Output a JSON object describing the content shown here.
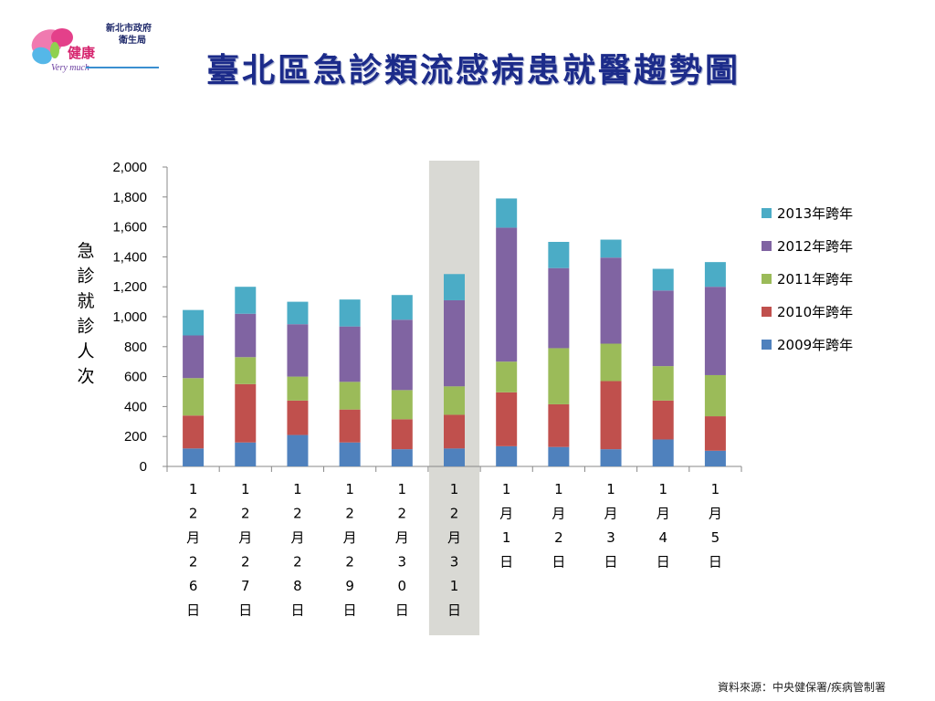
{
  "logo": {
    "brand_text": "健康",
    "org_line1": "新北市政府",
    "org_line2": "衛生局",
    "tagline": "Very much"
  },
  "title": "臺北區急診類流感病患就醫趨勢圖",
  "source": "資料來源：中央健保署/疾病管制署",
  "chart_data": {
    "type": "bar",
    "stacked": true,
    "title": "",
    "ylabel": "急診就診人次",
    "xlabel": "",
    "ylim": [
      0,
      2000
    ],
    "yticks": [
      "0",
      "200",
      "400",
      "600",
      "800",
      "1,000",
      "1,200",
      "1,400",
      "1,600",
      "1,800",
      "2,000"
    ],
    "categories": [
      "12月26日",
      "12月27日",
      "12月28日",
      "12月29日",
      "12月30日",
      "12月31日",
      "1月1日",
      "1月2日",
      "1月3日",
      "1月4日",
      "1月5日"
    ],
    "highlight_category": "12月31日",
    "legend_position": "right",
    "series": [
      {
        "name": "2009年跨年",
        "color": "#4f81bd",
        "values": [
          120,
          160,
          210,
          160,
          115,
          120,
          135,
          130,
          115,
          180,
          105
        ]
      },
      {
        "name": "2010年跨年",
        "color": "#c0504d",
        "values": [
          220,
          390,
          230,
          220,
          200,
          225,
          360,
          285,
          455,
          260,
          230
        ]
      },
      {
        "name": "2011年跨年",
        "color": "#9bbb59",
        "values": [
          250,
          180,
          160,
          185,
          195,
          190,
          205,
          375,
          250,
          230,
          275
        ]
      },
      {
        "name": "2012年跨年",
        "color": "#8064a2",
        "values": [
          285,
          290,
          350,
          370,
          470,
          575,
          895,
          535,
          575,
          505,
          590
        ]
      },
      {
        "name": "2013年跨年",
        "color": "#4bacc6",
        "values": [
          170,
          180,
          150,
          180,
          165,
          175,
          195,
          175,
          120,
          145,
          165
        ]
      }
    ]
  }
}
